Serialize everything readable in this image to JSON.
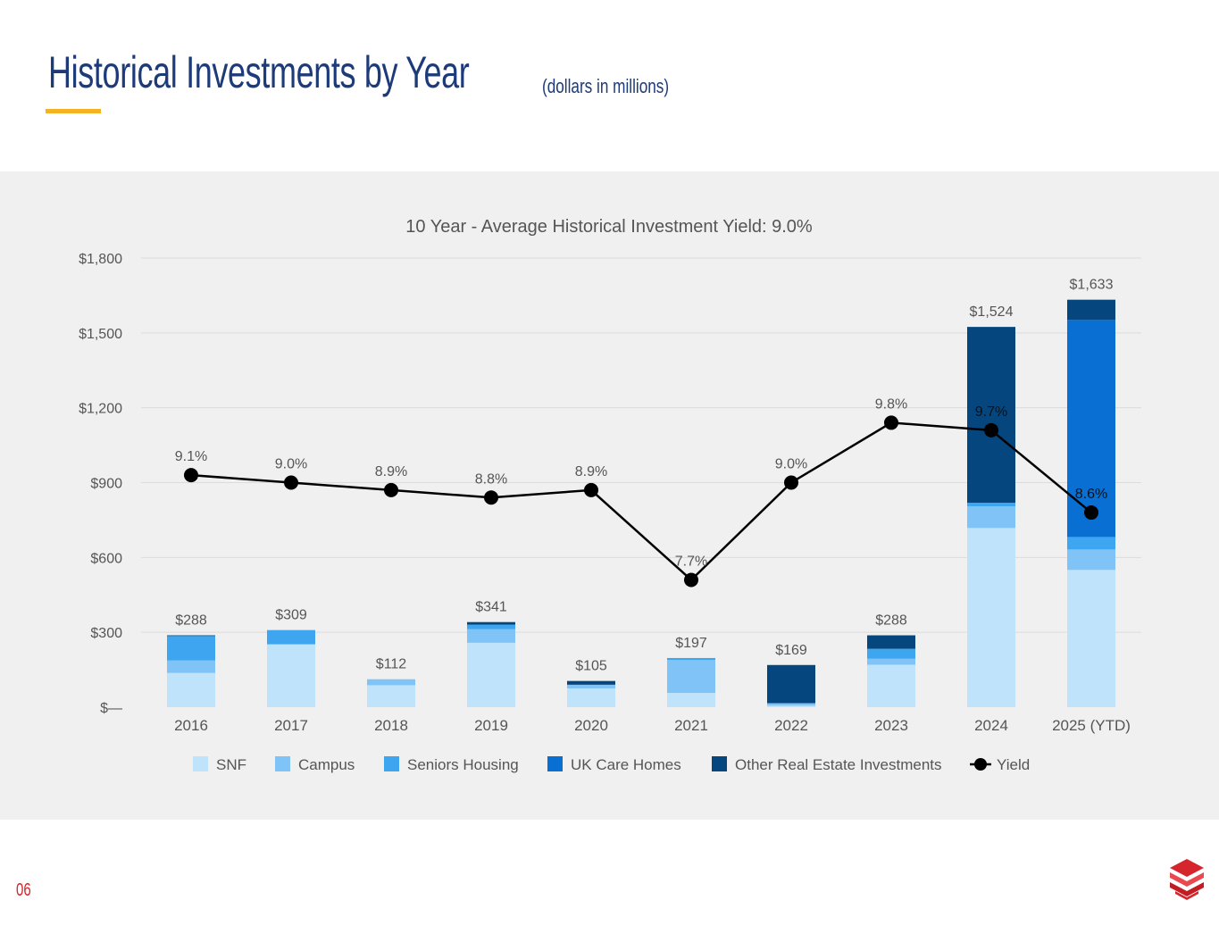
{
  "page": {
    "title": "Historical Investments by Year",
    "subtitle": "(dollars in millions)",
    "page_number": "06",
    "accent_color": "#f5b323",
    "title_color": "#1d3b78",
    "logo_icon": "stacked-chevron-logo-icon"
  },
  "chart_data": {
    "type": "bar",
    "stacked": true,
    "title": "10 Year - Average Historical Investment Yield: 9.0%",
    "categories": [
      "2016",
      "2017",
      "2018",
      "2019",
      "2020",
      "2021",
      "2022",
      "2023",
      "2024",
      "2025 (YTD)"
    ],
    "series": [
      {
        "name": "SNF",
        "color": "#c0e3fc",
        "values": [
          137,
          252,
          88,
          258,
          75,
          57,
          6,
          170,
          718,
          550
        ]
      },
      {
        "name": "Campus",
        "color": "#80c4f7",
        "values": [
          50,
          0,
          24,
          55,
          15,
          132,
          10,
          24,
          87,
          82
        ]
      },
      {
        "name": "Seniors Housing",
        "color": "#3ea6f0",
        "values": [
          98,
          57,
          0,
          18,
          0,
          8,
          0,
          40,
          14,
          50
        ]
      },
      {
        "name": "UK Care Homes",
        "color": "#0a6fd2",
        "values": [
          0,
          0,
          0,
          0,
          0,
          0,
          0,
          0,
          0,
          870
        ]
      },
      {
        "name": "Other Real Estate Investments",
        "color": "#05467e",
        "values": [
          3,
          0,
          0,
          10,
          15,
          0,
          153,
          54,
          705,
          81
        ]
      }
    ],
    "totals": [
      "$288",
      "$309",
      "$112",
      "$341",
      "$105",
      "$197",
      "$169",
      "$288",
      "$1,524",
      "$1,633"
    ],
    "yield": {
      "name": "Yield",
      "values": [
        9.1,
        9.0,
        8.9,
        8.8,
        8.9,
        7.7,
        9.0,
        9.8,
        9.7,
        8.6
      ],
      "labels": [
        "9.1%",
        "9.0%",
        "8.9%",
        "8.8%",
        "8.9%",
        "7.7%",
        "9.0%",
        "9.8%",
        "9.7%",
        "8.6%"
      ],
      "axis_range": [
        6.0,
        12.0
      ]
    },
    "ylim": [
      0,
      1800
    ],
    "y_ticks": [
      0,
      300,
      600,
      900,
      1200,
      1500,
      1800
    ],
    "y_tick_labels": [
      "$—",
      "$300",
      "$600",
      "$900",
      "$1,200",
      "$1,500",
      "$1,800"
    ],
    "grid": true,
    "legend": "bottom"
  }
}
